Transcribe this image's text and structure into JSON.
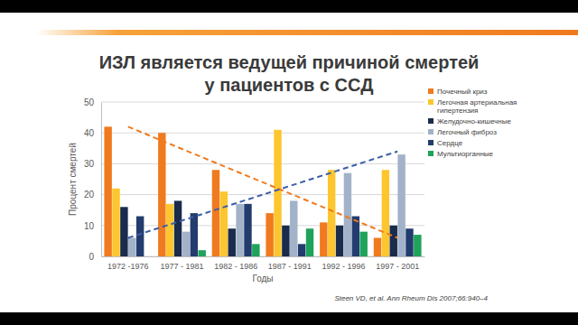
{
  "chart_data": {
    "type": "bar",
    "title": "ИЗЛ является ведущей причиной смертей\nу пациентов с ССД",
    "y_label": "Процент смертей",
    "x_label": "Годы",
    "source": "Steen VD, et al. Ann Rheum Dis 2007;66:940–4",
    "categories": [
      "1972 -1976",
      "1977 - 1981",
      "1982 - 1986",
      "1987 - 1991",
      "1992 - 1996",
      "1997 - 2001"
    ],
    "series": [
      {
        "name": "Почечный криз",
        "color": "#f07a1e",
        "values": [
          42,
          40,
          28,
          14,
          11,
          6
        ]
      },
      {
        "name": "Легочная артериальная гипертензия",
        "color": "#fdc62f",
        "values": [
          22,
          17,
          21,
          41,
          28,
          28
        ]
      },
      {
        "name": "Желудочно-кишечные",
        "color": "#1a2b4c",
        "values": [
          16,
          18,
          9,
          10,
          10,
          10
        ]
      },
      {
        "name": "Легочный фиброз",
        "color": "#a2b2c8",
        "values": [
          6,
          8,
          17,
          18,
          27,
          33
        ]
      },
      {
        "name": "Сердце",
        "color": "#233c6e",
        "values": [
          13,
          14,
          17,
          4,
          13,
          9
        ]
      },
      {
        "name": "Мультиорганные",
        "color": "#1fa35a",
        "values": [
          0,
          2,
          4,
          9,
          8,
          7
        ]
      }
    ],
    "trend_lines": [
      {
        "color": "#f07a1e",
        "line_style": "dashed",
        "x": [
          "1972 -1976",
          "1997 - 2001"
        ],
        "values": [
          42,
          6
        ]
      },
      {
        "color": "#3b5ea8",
        "line_style": "dashed",
        "x": [
          "1972 -1976",
          "1997 - 2001"
        ],
        "values": [
          6,
          34
        ]
      }
    ],
    "ylim": [
      0,
      50
    ],
    "yticks": [
      0,
      10,
      20,
      30,
      40,
      50
    ],
    "grid": true,
    "legend": "right"
  }
}
